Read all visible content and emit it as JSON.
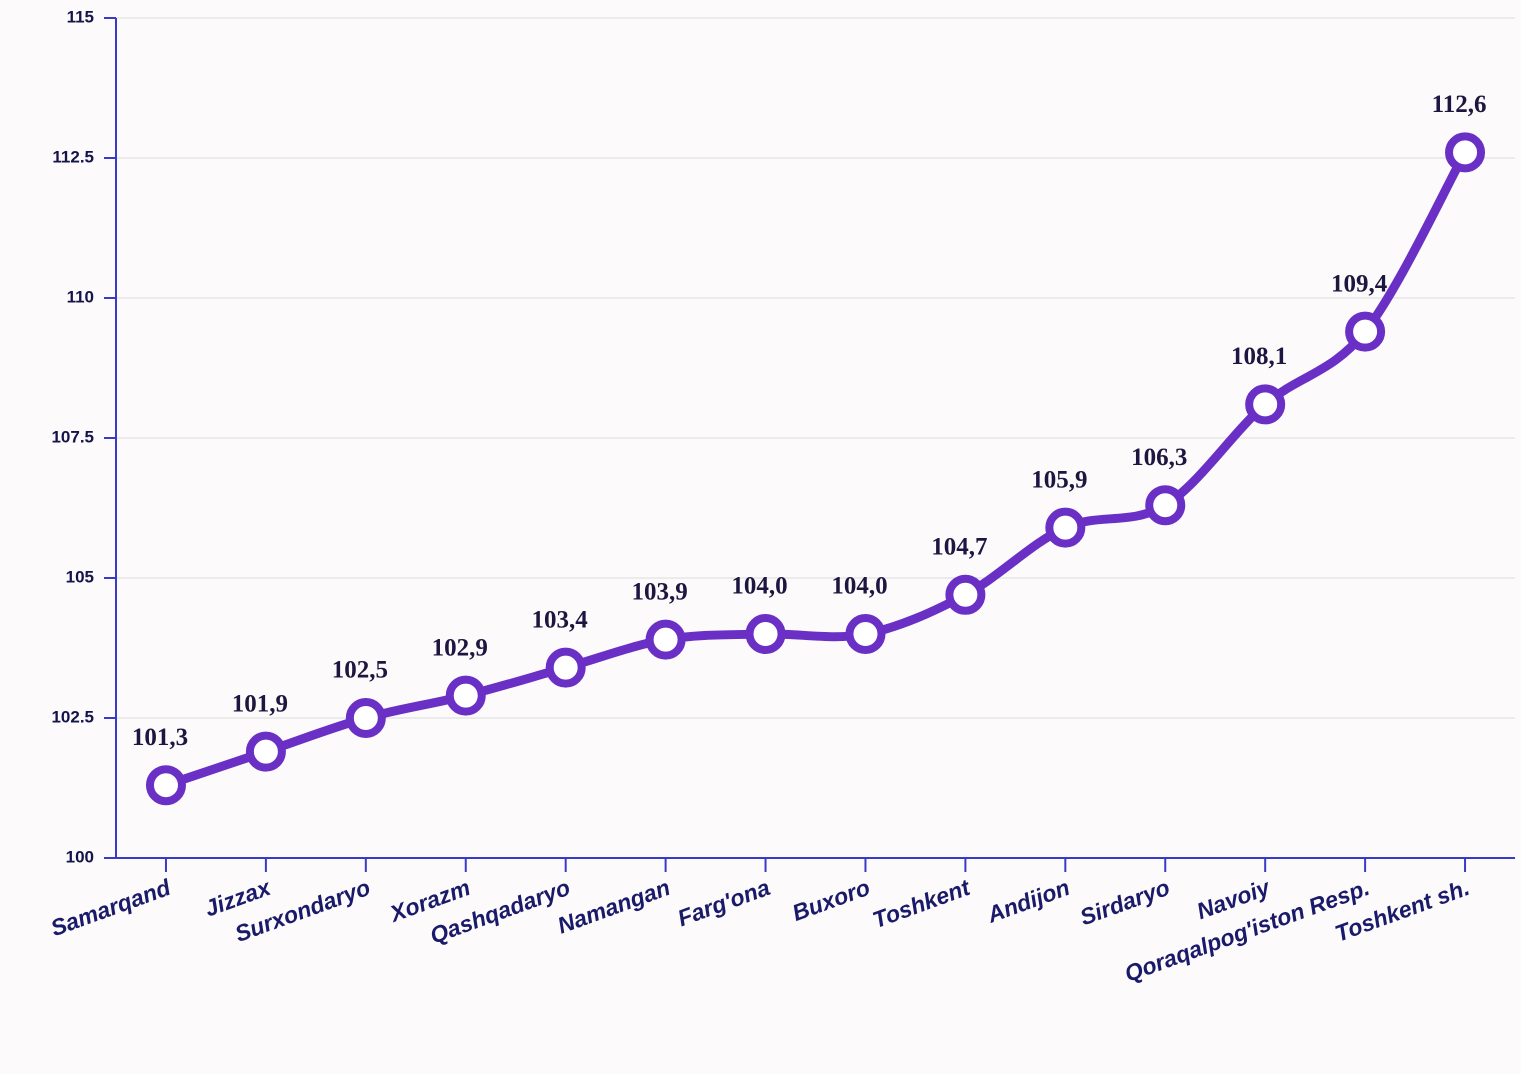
{
  "chart_data": {
    "type": "line",
    "categories": [
      "Samarqand",
      "Jizzax",
      "Surxondaryo",
      "Xorazm",
      "Qashqadaryo",
      "Namangan",
      "Farg'ona",
      "Buxoro",
      "Toshkent",
      "Andijon",
      "Sirdaryo",
      "Navoiy",
      "Qoraqalpog'iston Resp.",
      "Toshkent sh."
    ],
    "values": [
      101.3,
      101.9,
      102.5,
      102.9,
      103.4,
      103.9,
      104.0,
      104.0,
      104.7,
      105.9,
      106.3,
      108.1,
      109.4,
      112.6
    ],
    "value_labels": [
      "101,3",
      "101,9",
      "102,5",
      "102,9",
      "103,4",
      "103,9",
      "104,0",
      "104,0",
      "104,7",
      "105,9",
      "106,3",
      "108,1",
      "109,4",
      "112,6"
    ],
    "color": "#6a2fc4",
    "ylim": [
      100,
      115
    ],
    "yticks": [
      100,
      102.5,
      105,
      107.5,
      110,
      112.5,
      115
    ],
    "grid": true
  }
}
